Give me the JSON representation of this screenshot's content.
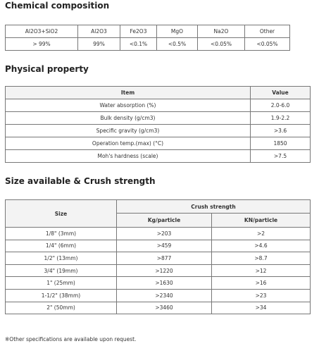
{
  "chemical": {
    "title": "Chemical composition",
    "headers": [
      "Al2O3+SiO2",
      "Al2O3",
      "Fe2O3",
      "MgO",
      "Na2O",
      "Other"
    ],
    "values": [
      "> 99%",
      "99%",
      "<0.1%",
      "<0.5%",
      "<0.05%",
      "<0.05%"
    ]
  },
  "physical": {
    "title": "Physical property",
    "headers": [
      "Item",
      "Value"
    ],
    "rows": [
      [
        "Water absorption (%)",
        "2.0-6.0"
      ],
      [
        "Bulk density (g/cm3)",
        "1.9-2.2"
      ],
      [
        "Specific gravity (g/cm3)",
        ">3.6"
      ],
      [
        "Operation temp.(max) (°C)",
        "1850"
      ],
      [
        "Moh's hardness (scale)",
        ">7.5"
      ]
    ]
  },
  "size": {
    "title": "Size available & Crush strength",
    "size_header": "Size",
    "group_header": "Crush strength",
    "sub_headers": [
      "Kg/particle",
      "KN/particle"
    ],
    "rows": [
      [
        "1/8\" (3mm)",
        ">203",
        ">2"
      ],
      [
        "1/4\" (6mm)",
        ">459",
        ">4.6"
      ],
      [
        "1/2\" (13mm)",
        ">877",
        ">8.7"
      ],
      [
        "3/4\" (19mm)",
        ">1220",
        ">12"
      ],
      [
        "1\" (25mm)",
        ">1630",
        ">16"
      ],
      [
        "1-1/2\" (38mm)",
        ">2340",
        ">23"
      ],
      [
        "2\" (50mm)",
        ">3460",
        ">34"
      ]
    ]
  },
  "footnote": "※Other specifications are available upon request."
}
